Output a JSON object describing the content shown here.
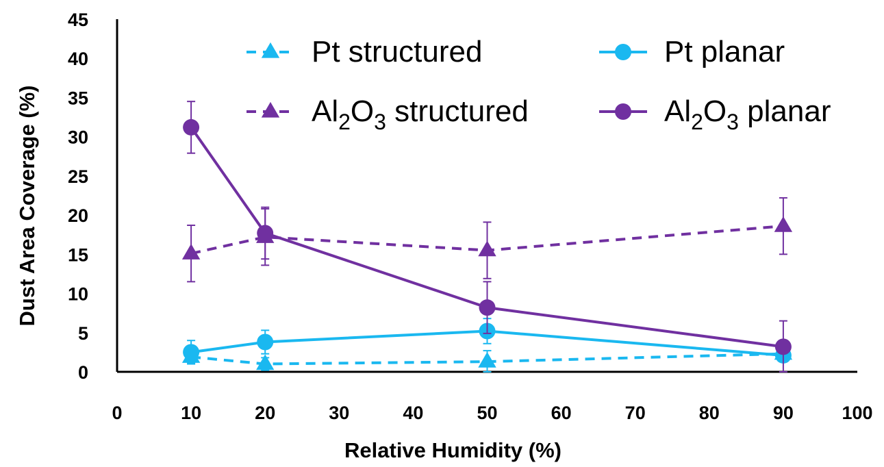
{
  "chart_data": {
    "type": "line",
    "xlabel": "Relative Humidity (%)",
    "ylabel": "Dust Area Coverage (%)",
    "xlim": [
      0,
      100
    ],
    "ylim": [
      0,
      45
    ],
    "x_ticks": [
      0,
      10,
      20,
      30,
      40,
      50,
      60,
      70,
      80,
      90,
      100
    ],
    "y_ticks": [
      0,
      5,
      10,
      15,
      20,
      25,
      30,
      35,
      40,
      45
    ],
    "grid": false,
    "legend_position": "top, 2 columns",
    "series": [
      {
        "name": "Pt structured",
        "legend_prefix": "Pt",
        "legend_sub": "",
        "legend_mid": "",
        "legend_sub2": "",
        "legend_suffix": " structured",
        "color": "#1ab8f0",
        "line_style": "dashed",
        "marker": "triangle",
        "x": [
          10,
          20,
          50,
          90
        ],
        "y": [
          1.9,
          1.0,
          1.3,
          2.3
        ],
        "error": [
          0.8,
          0.8,
          1.4,
          0.4
        ]
      },
      {
        "name": "Pt planar",
        "legend_prefix": "Pt",
        "legend_sub": "",
        "legend_mid": "",
        "legend_sub2": "",
        "legend_suffix": " planar",
        "color": "#1ab8f0",
        "line_style": "solid",
        "marker": "circle",
        "x": [
          10,
          20,
          50,
          90
        ],
        "y": [
          2.5,
          3.8,
          5.2,
          2.1
        ],
        "error": [
          1.5,
          1.5,
          1.6,
          0.4
        ]
      },
      {
        "name": "Al2O3 structured",
        "legend_prefix": "Al",
        "legend_sub": "2",
        "legend_mid": "O",
        "legend_sub2": "3",
        "legend_suffix": " structured",
        "color": "#7030a0",
        "line_style": "dashed",
        "marker": "triangle",
        "x": [
          10,
          20,
          50,
          90
        ],
        "y": [
          15.1,
          17.2,
          15.5,
          18.6
        ],
        "error": [
          3.6,
          3.6,
          3.6,
          3.6
        ]
      },
      {
        "name": "Al2O3 planar",
        "legend_prefix": "Al",
        "legend_sub": "2",
        "legend_mid": "O",
        "legend_sub2": "3",
        "legend_suffix": " planar",
        "color": "#7030a0",
        "line_style": "solid",
        "marker": "circle",
        "x": [
          10,
          20,
          50,
          90
        ],
        "y": [
          31.2,
          17.7,
          8.2,
          3.2
        ],
        "error": [
          3.3,
          3.3,
          3.3,
          3.3
        ]
      }
    ]
  }
}
